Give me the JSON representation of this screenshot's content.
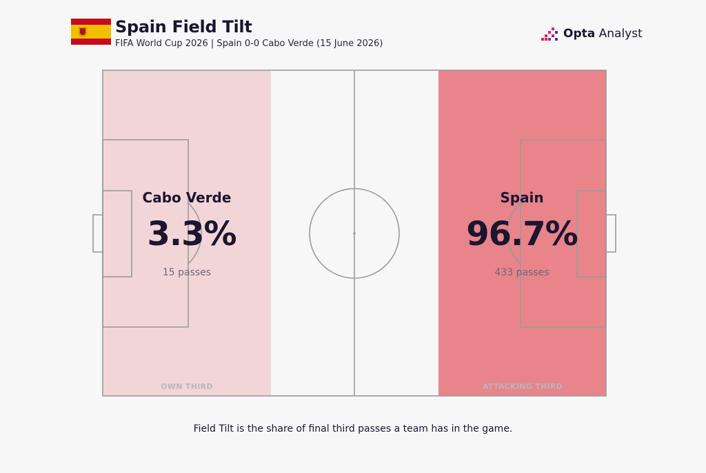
{
  "header": {
    "title": "Spain Field Tilt",
    "subtitle": "FIFA World Cup 2026 | Spain 0-0 Cabo Verde (15 June 2026)",
    "brand_bold": "Opta",
    "brand_light": " Analyst"
  },
  "colors": {
    "own_third_fill": "#f2d6d7",
    "attacking_third_fill": "#e8848a",
    "pitch_bg": "#f7f7f7",
    "pitch_lines": "#9a9a9a",
    "brand_accent": "#d6246e"
  },
  "chart_data": {
    "type": "field-tilt",
    "title": "Spain Field Tilt",
    "teams": [
      {
        "name": "Cabo Verde",
        "share_pct": 3.3,
        "share_label": "3.3%",
        "passes": 15,
        "passes_label": "15 passes",
        "third": "OWN THIRD"
      },
      {
        "name": "Spain",
        "share_pct": 96.7,
        "share_label": "96.7%",
        "passes": 433,
        "passes_label": "433 passes",
        "third": "ATTACKING THIRD"
      }
    ]
  },
  "footnote": "Field Tilt is the share of final third passes a team has in the game."
}
